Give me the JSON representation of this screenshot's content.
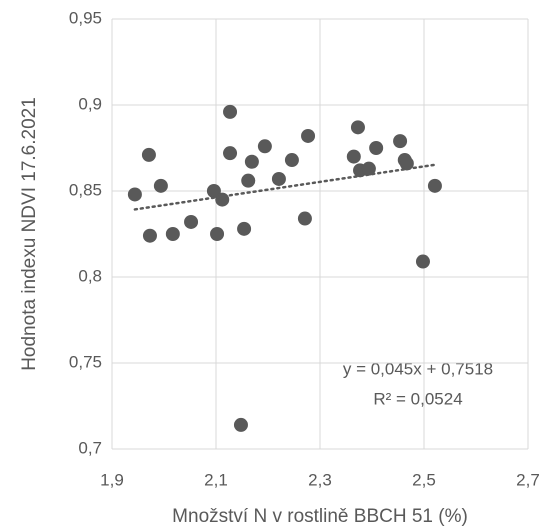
{
  "chart_data": {
    "type": "scatter",
    "x_label": "Množství N v rostlině BBCH 51 (%)",
    "y_label": "Hodnota indexu NDVI 17.6.2021",
    "color": "#595959",
    "x": [
      1.944,
      1.971,
      1.973,
      1.994,
      2.017,
      2.052,
      2.096,
      2.102,
      2.112,
      2.127,
      2.127,
      2.148,
      2.154,
      2.162,
      2.169,
      2.194,
      2.221,
      2.246,
      2.271,
      2.277,
      2.365,
      2.373,
      2.377,
      2.394,
      2.408,
      2.454,
      2.463,
      2.467,
      2.498,
      2.521
    ],
    "values": [
      0.848,
      0.871,
      0.824,
      0.853,
      0.825,
      0.832,
      0.85,
      0.825,
      0.845,
      0.896,
      0.872,
      0.714,
      0.828,
      0.856,
      0.867,
      0.876,
      0.857,
      0.868,
      0.834,
      0.882,
      0.87,
      0.887,
      0.862,
      0.863,
      0.875,
      0.879,
      0.868,
      0.866,
      0.809,
      0.853
    ],
    "xlim": [
      1.9,
      2.7
    ],
    "ylim": [
      0.7,
      0.95
    ],
    "xticks": [
      {
        "value": 1.9,
        "label": "1,9"
      },
      {
        "value": 2.1,
        "label": "2,1"
      },
      {
        "value": 2.3,
        "label": "2,3"
      },
      {
        "value": 2.5,
        "label": "2,5"
      },
      {
        "value": 2.7,
        "label": "2,7"
      }
    ],
    "yticks": [
      {
        "value": 0.7,
        "label": "0,7"
      },
      {
        "value": 0.75,
        "label": "0,75"
      },
      {
        "value": 0.8,
        "label": "0,8"
      },
      {
        "value": 0.85,
        "label": "0,85"
      },
      {
        "value": 0.9,
        "label": "0,9"
      },
      {
        "value": 0.95,
        "label": "0,95"
      }
    ],
    "grid": true,
    "trendline": {
      "slope": 0.045,
      "intercept": 0.7518,
      "equation": "y = 0,045x + 0,7518",
      "r_squared": "R² = 0,0524"
    }
  }
}
